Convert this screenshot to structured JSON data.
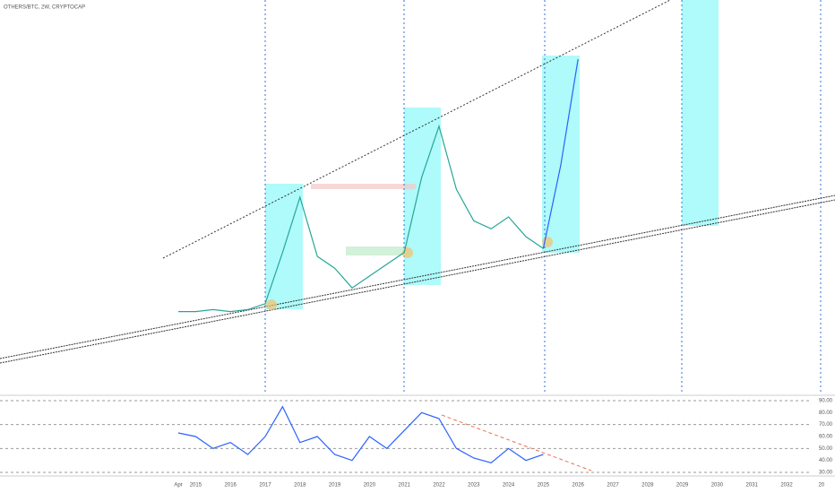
{
  "chart_data": {
    "type": "line",
    "title": "OTHERS/BTC, 2W, CRYPTOCAP",
    "categories": [
      "Apr",
      "2015",
      null,
      "2016",
      null,
      "2017",
      null,
      "2018",
      null,
      "2019",
      null,
      "2020",
      null,
      "2021",
      null,
      "2022",
      null,
      "2023",
      null,
      "2024",
      null,
      "2025",
      null,
      "2026",
      null,
      "2027",
      null,
      "2028",
      null,
      "2029",
      null,
      "2030",
      null,
      "2031",
      null,
      "2032",
      null,
      "20"
    ],
    "series": [
      {
        "color": "#26a69a",
        "values": [
          21,
          21,
          21.5,
          21,
          21.5,
          23,
          36,
          50,
          35,
          32,
          27,
          30,
          33,
          36,
          55,
          68,
          52,
          44,
          42,
          45,
          40,
          37,
          null,
          null,
          null,
          null,
          null,
          null,
          null,
          null,
          null,
          null,
          null,
          null,
          null,
          null,
          null,
          null
        ]
      },
      {
        "color": "#2962ff",
        "values": [
          null,
          null,
          null,
          null,
          null,
          null,
          null,
          null,
          null,
          null,
          null,
          null,
          null,
          null,
          null,
          null,
          null,
          null,
          null,
          null,
          null,
          37,
          58,
          85,
          null,
          null,
          null,
          null,
          null,
          null,
          null,
          null,
          null,
          null,
          null,
          null,
          null,
          null
        ]
      },
      {
        "color": "#2962ff",
        "axis": "y2",
        "values": [
          63,
          60,
          50,
          55,
          45,
          60,
          85,
          55,
          60,
          45,
          40,
          60,
          50,
          65,
          80,
          75,
          50,
          42,
          38,
          50,
          40,
          45,
          null,
          null,
          null,
          null,
          null,
          null,
          null,
          null,
          null,
          null,
          null,
          null,
          null,
          null,
          null,
          null
        ]
      }
    ],
    "ylim": [
      0,
      100
    ],
    "y2lim": [
      30,
      90
    ],
    "y2ticks": [
      {
        "value": 90,
        "label": "90.00"
      },
      {
        "value": 80,
        "label": "80.00"
      },
      {
        "value": 70,
        "label": "70.00"
      },
      {
        "value": 60,
        "label": "60.00"
      },
      {
        "value": 50,
        "label": "50.00"
      },
      {
        "value": 40,
        "label": "40.00"
      },
      {
        "value": 30,
        "label": "30.00"
      }
    ]
  }
}
